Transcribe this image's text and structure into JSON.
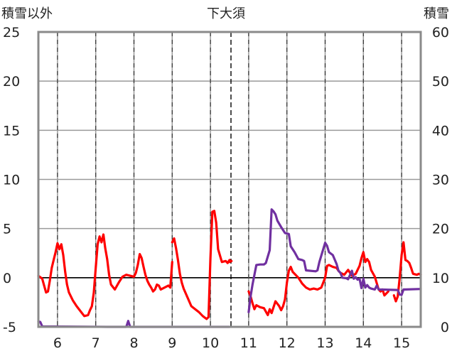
{
  "chart_data": {
    "type": "line",
    "title": "下大須",
    "left_axis_label": "積雪以外",
    "right_axis_label": "積雪",
    "x_ticks": [
      "6",
      "7",
      "8",
      "9",
      "10",
      "11",
      "12",
      "13",
      "14",
      "15"
    ],
    "x_range": [
      5.5,
      15.5
    ],
    "y_left": {
      "ticks": [
        "25",
        "20",
        "15",
        "10",
        "5",
        "0",
        "-5"
      ],
      "range": [
        -5,
        25
      ]
    },
    "y_right": {
      "ticks": [
        "60",
        "50",
        "40",
        "30",
        "20",
        "10",
        "0"
      ],
      "range": [
        0,
        60
      ]
    },
    "zero_line": 0,
    "series": [
      {
        "axis": "left",
        "color": "#ff0000",
        "segments": [
          [
            [
              5.5,
              0.2
            ],
            [
              5.6,
              -0.1
            ],
            [
              5.65,
              -0.8
            ],
            [
              5.7,
              -1.5
            ],
            [
              5.75,
              -1.4
            ],
            [
              5.8,
              -0.3
            ],
            [
              5.85,
              1.0
            ],
            [
              5.9,
              1.8
            ],
            [
              5.95,
              2.6
            ],
            [
              6.0,
              3.5
            ],
            [
              6.05,
              2.9
            ],
            [
              6.1,
              3.4
            ],
            [
              6.15,
              2.3
            ],
            [
              6.2,
              0.6
            ],
            [
              6.25,
              -0.7
            ],
            [
              6.3,
              -1.5
            ],
            [
              6.4,
              -2.3
            ],
            [
              6.5,
              -2.9
            ],
            [
              6.6,
              -3.4
            ],
            [
              6.7,
              -3.9
            ],
            [
              6.8,
              -3.8
            ],
            [
              6.85,
              -3.3
            ],
            [
              6.9,
              -2.9
            ],
            [
              6.95,
              -1.5
            ],
            [
              7.0,
              1.0
            ],
            [
              7.05,
              3.4
            ],
            [
              7.1,
              4.2
            ],
            [
              7.15,
              3.6
            ],
            [
              7.2,
              4.4
            ],
            [
              7.25,
              3.0
            ],
            [
              7.3,
              1.9
            ],
            [
              7.35,
              0.3
            ],
            [
              7.4,
              -0.7
            ],
            [
              7.5,
              -1.2
            ],
            [
              7.6,
              -0.5
            ],
            [
              7.7,
              0.1
            ],
            [
              7.8,
              0.3
            ],
            [
              7.9,
              0.2
            ],
            [
              8.0,
              0.1
            ],
            [
              8.05,
              0.5
            ],
            [
              8.1,
              1.3
            ],
            [
              8.15,
              2.4
            ],
            [
              8.2,
              2.0
            ],
            [
              8.25,
              1.1
            ],
            [
              8.3,
              0.3
            ],
            [
              8.35,
              -0.3
            ],
            [
              8.4,
              -0.7
            ],
            [
              8.45,
              -1.0
            ],
            [
              8.5,
              -1.4
            ],
            [
              8.55,
              -1.2
            ],
            [
              8.6,
              -0.7
            ],
            [
              8.65,
              -0.8
            ],
            [
              8.7,
              -1.2
            ],
            [
              8.8,
              -1.0
            ],
            [
              8.9,
              -0.8
            ],
            [
              8.95,
              -1.0
            ],
            [
              9.0,
              1.6
            ]
          ],
          [
            [
              9.0,
              3.6
            ],
            [
              9.05,
              4.0
            ],
            [
              9.1,
              3.0
            ],
            [
              9.15,
              1.8
            ],
            [
              9.2,
              0.4
            ],
            [
              9.25,
              -0.5
            ],
            [
              9.3,
              -1.1
            ],
            [
              9.4,
              -2.0
            ],
            [
              9.5,
              -2.9
            ],
            [
              9.6,
              -3.2
            ],
            [
              9.7,
              -3.5
            ],
            [
              9.8,
              -3.9
            ],
            [
              9.9,
              -4.2
            ],
            [
              9.95,
              -4.0
            ],
            [
              10.0,
              2.0
            ],
            [
              10.05,
              6.7
            ],
            [
              10.1,
              6.8
            ],
            [
              10.15,
              5.6
            ],
            [
              10.2,
              2.9
            ],
            [
              10.3,
              1.6
            ],
            [
              10.4,
              1.7
            ],
            [
              10.45,
              1.5
            ],
            [
              10.5,
              1.8
            ]
          ],
          [
            [
              10.5,
              1.6
            ],
            [
              10.55,
              1.7
            ]
          ],
          [
            [
              11.0,
              -1.4
            ],
            [
              11.05,
              -1.9
            ],
            [
              11.1,
              -2.6
            ],
            [
              11.15,
              -3.2
            ],
            [
              11.2,
              -2.8
            ],
            [
              11.3,
              -3.0
            ],
            [
              11.4,
              -3.1
            ],
            [
              11.5,
              -3.8
            ],
            [
              11.55,
              -3.2
            ],
            [
              11.6,
              -3.6
            ],
            [
              11.7,
              -2.4
            ],
            [
              11.8,
              -2.9
            ],
            [
              11.85,
              -3.3
            ],
            [
              11.9,
              -2.9
            ],
            [
              11.95,
              -2.2
            ],
            [
              12.0,
              -0.5
            ],
            [
              12.05,
              0.7
            ],
            [
              12.1,
              1.1
            ],
            [
              12.15,
              0.6
            ],
            [
              12.3,
              0.0
            ],
            [
              12.4,
              -0.6
            ],
            [
              12.5,
              -1.0
            ],
            [
              12.6,
              -1.2
            ],
            [
              12.7,
              -1.1
            ],
            [
              12.8,
              -1.2
            ],
            [
              12.9,
              -1.0
            ],
            [
              13.0,
              0.0
            ],
            [
              13.05,
              1.2
            ],
            [
              13.1,
              1.3
            ],
            [
              13.2,
              1.1
            ],
            [
              13.3,
              1.0
            ],
            [
              13.35,
              0.7
            ],
            [
              13.4,
              0.5
            ],
            [
              13.5,
              0.3
            ],
            [
              13.6,
              0.8
            ],
            [
              13.7,
              0.2
            ],
            [
              13.8,
              0.4
            ],
            [
              13.9,
              1.2
            ],
            [
              13.95,
              2.0
            ],
            [
              14.0,
              2.6
            ],
            [
              14.05,
              1.6
            ],
            [
              14.1,
              1.9
            ],
            [
              14.15,
              1.6
            ],
            [
              14.2,
              0.8
            ],
            [
              14.3,
              0.1
            ],
            [
              14.4,
              -1.2
            ],
            [
              14.45,
              -1.4
            ],
            [
              14.5,
              -1.2
            ],
            [
              14.55,
              -1.8
            ],
            [
              14.6,
              -1.6
            ],
            [
              14.65,
              -1.4
            ]
          ],
          [
            [
              14.8,
              -1.8
            ],
            [
              14.85,
              -2.4
            ],
            [
              14.9,
              -1.9
            ],
            [
              14.95,
              0.0
            ],
            [
              15.0,
              2.3
            ],
            [
              15.05,
              3.6
            ],
            [
              15.1,
              1.8
            ],
            [
              15.15,
              1.7
            ],
            [
              15.2,
              1.5
            ],
            [
              15.25,
              1.0
            ],
            [
              15.3,
              0.4
            ],
            [
              15.4,
              0.3
            ],
            [
              15.45,
              0.4
            ],
            [
              15.5,
              0.3
            ]
          ]
        ]
      },
      {
        "axis": "right",
        "color": "#7030a0",
        "segments": [
          [
            [
              5.5,
              1.1
            ],
            [
              5.55,
              1.0
            ],
            [
              5.6,
              0.1
            ],
            [
              7.3,
              0.0
            ],
            [
              7.8,
              0.0
            ],
            [
              7.85,
              1.2
            ],
            [
              7.9,
              0.0
            ],
            [
              10.5,
              0.0
            ]
          ],
          [
            [
              11.0,
              3.0
            ],
            [
              11.05,
              6.2
            ],
            [
              11.1,
              8.6
            ],
            [
              11.15,
              10.6
            ],
            [
              11.2,
              12.6
            ],
            [
              11.3,
              12.7
            ],
            [
              11.4,
              12.7
            ],
            [
              11.45,
              13.0
            ],
            [
              11.55,
              15.6
            ],
            [
              11.6,
              23.9
            ],
            [
              11.65,
              23.5
            ],
            [
              11.7,
              22.9
            ],
            [
              11.75,
              21.6
            ],
            [
              11.85,
              20.3
            ],
            [
              11.95,
              19.1
            ],
            [
              12.05,
              18.9
            ],
            [
              12.1,
              16.4
            ],
            [
              12.2,
              15.2
            ],
            [
              12.3,
              13.8
            ],
            [
              12.4,
              13.6
            ],
            [
              12.45,
              13.4
            ],
            [
              12.5,
              11.5
            ],
            [
              12.75,
              11.3
            ],
            [
              12.8,
              11.5
            ],
            [
              12.85,
              13.2
            ],
            [
              12.9,
              14.5
            ],
            [
              13.0,
              17.1
            ],
            [
              13.05,
              16.5
            ],
            [
              13.1,
              15.2
            ],
            [
              13.2,
              14.6
            ],
            [
              13.3,
              12.8
            ],
            [
              13.35,
              11.4
            ],
            [
              13.4,
              11.0
            ],
            [
              13.45,
              10.0
            ],
            [
              13.55,
              9.9
            ],
            [
              13.6,
              9.7
            ],
            [
              13.7,
              11.4
            ],
            [
              13.75,
              9.8
            ],
            [
              13.8,
              10.1
            ],
            [
              13.85,
              9.6
            ],
            [
              13.9,
              9.8
            ],
            [
              13.95,
              7.9
            ],
            [
              14.0,
              9.8
            ],
            [
              14.05,
              8.0
            ],
            [
              14.1,
              8.5
            ],
            [
              14.15,
              8.0
            ],
            [
              14.2,
              7.8
            ],
            [
              14.3,
              7.6
            ],
            [
              14.35,
              8.4
            ],
            [
              14.4,
              7.6
            ],
            [
              14.9,
              7.5
            ],
            [
              14.95,
              6.6
            ],
            [
              15.0,
              6.5
            ],
            [
              15.05,
              7.6
            ],
            [
              15.1,
              7.6
            ],
            [
              15.5,
              7.7
            ]
          ]
        ]
      }
    ]
  }
}
